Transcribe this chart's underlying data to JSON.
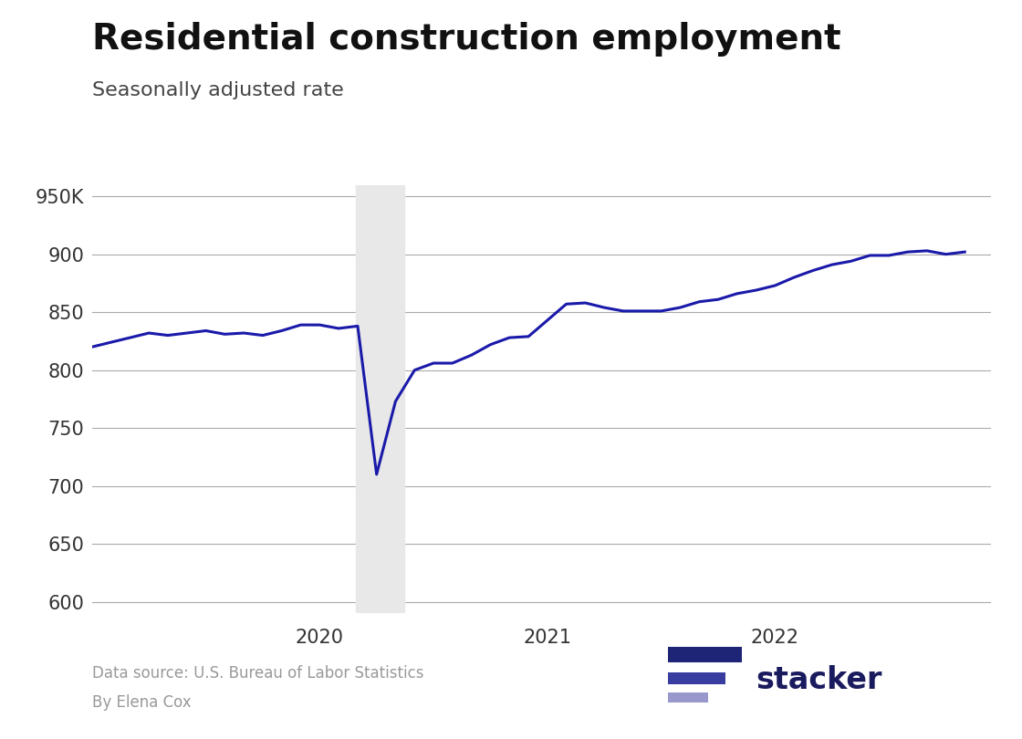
{
  "title": "Residential construction employment",
  "subtitle": "Seasonally adjusted rate",
  "source_line1": "Data source: U.S. Bureau of Labor Statistics",
  "source_line2": "By Elena Cox",
  "line_color": "#1a1aaa",
  "line_width": 2.2,
  "background_color": "#ffffff",
  "grid_color": "#aaaaaa",
  "shade_color": "#e8e8e8",
  "shade_xmin": 2020.16,
  "shade_xmax": 2020.37,
  "ylim": [
    590,
    960
  ],
  "yticks": [
    600,
    650,
    700,
    750,
    800,
    850,
    900,
    950
  ],
  "xticks": [
    2020,
    2021,
    2022
  ],
  "xlim": [
    2019.0,
    2022.95
  ],
  "data": {
    "x": [
      2019.0,
      2019.083,
      2019.167,
      2019.25,
      2019.333,
      2019.417,
      2019.5,
      2019.583,
      2019.667,
      2019.75,
      2019.833,
      2019.917,
      2020.0,
      2020.083,
      2020.167,
      2020.25,
      2020.333,
      2020.417,
      2020.5,
      2020.583,
      2020.667,
      2020.75,
      2020.833,
      2020.917,
      2021.0,
      2021.083,
      2021.167,
      2021.25,
      2021.333,
      2021.417,
      2021.5,
      2021.583,
      2021.667,
      2021.75,
      2021.833,
      2021.917,
      2022.0,
      2022.083,
      2022.167,
      2022.25,
      2022.333,
      2022.417,
      2022.5,
      2022.583,
      2022.667,
      2022.75,
      2022.833
    ],
    "y": [
      820,
      824,
      828,
      832,
      830,
      832,
      834,
      831,
      832,
      830,
      834,
      839,
      839,
      836,
      838,
      710,
      773,
      800,
      806,
      806,
      813,
      822,
      828,
      829,
      843,
      857,
      858,
      854,
      851,
      851,
      851,
      854,
      859,
      861,
      866,
      869,
      873,
      880,
      886,
      891,
      894,
      899,
      899,
      902,
      903,
      900,
      902
    ]
  },
  "logo_bar_colors": [
    "#1e2577",
    "#3a3da0",
    "#9898cc"
  ],
  "logo_text_color": "#1a1a5e",
  "logo_text": "stacker",
  "source_color": "#999999",
  "title_color": "#111111",
  "subtitle_color": "#444444",
  "tick_color": "#333333",
  "title_fontsize": 28,
  "subtitle_fontsize": 16,
  "tick_fontsize": 15,
  "source_fontsize": 12
}
